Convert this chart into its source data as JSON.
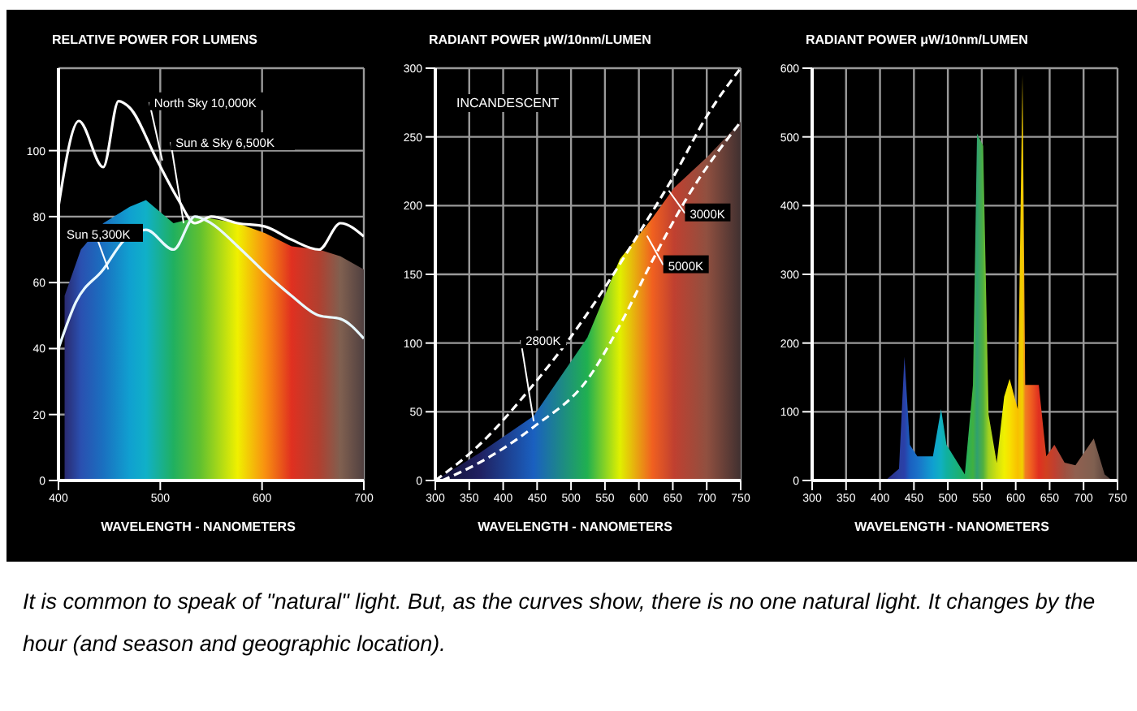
{
  "chart_data": [
    {
      "type": "line",
      "title": "RELATIVE POWER FOR LUMENS",
      "xlabel": "WAVELENGTH - NANOMETERS",
      "xlim": [
        400,
        700
      ],
      "xticks": [
        400,
        500,
        600,
        700
      ],
      "ylim": [
        0,
        125
      ],
      "yticks": [
        0,
        20,
        40,
        60,
        80,
        100
      ],
      "grid": true,
      "series": [
        {
          "type": "area",
          "x": [
            406,
            422,
            444,
            470,
            486,
            513,
            539,
            576,
            603,
            629,
            656,
            677,
            700
          ],
          "values": [
            56,
            70,
            78,
            83,
            85,
            78,
            80,
            78,
            75,
            71,
            70,
            68,
            64
          ],
          "colors": [
            "#2a2a70",
            "#2a50b0",
            "#1a70c0",
            "#10a0d0",
            "#10b0c8",
            "#20b060",
            "#60c030",
            "#f0f000",
            "#f89010",
            "#e03020",
            "#b04030",
            "#806050",
            "#504040"
          ]
        },
        {
          "type": "line",
          "color": "#ffffff",
          "line_style": "solid",
          "x": [
            400,
            420,
            444,
            459,
            470,
            497,
            518,
            534,
            550,
            576,
            603,
            629,
            656,
            677,
            700
          ],
          "values": [
            83,
            109,
            95,
            115,
            113,
            97,
            85,
            78,
            80,
            78,
            77,
            73,
            70,
            78,
            74
          ]
        },
        {
          "type": "line",
          "color": "#e8f8ff",
          "line_style": "solid",
          "x": [
            400,
            417,
            444,
            465,
            486,
            513,
            534,
            550,
            576,
            603,
            629,
            656,
            677,
            700
          ],
          "values": [
            40,
            54,
            64,
            73,
            76,
            70,
            80,
            78,
            71,
            63,
            56,
            50,
            49,
            43
          ]
        }
      ],
      "annotations": [
        {
          "text": "Sun 5,300K",
          "x": 449,
          "y": 64
        },
        {
          "text": "North Sky 10,000K",
          "x": 502,
          "y": 97
        },
        {
          "text": "Sun & Sky 6,500K",
          "x": 523,
          "y": 78
        }
      ]
    },
    {
      "type": "line",
      "title": "RADIANT POWER μW/10nm/LUMEN",
      "xlabel": "WAVELENGTH - NANOMETERS",
      "xlim": [
        300,
        750
      ],
      "xticks": [
        300,
        350,
        400,
        450,
        500,
        550,
        600,
        650,
        700,
        750
      ],
      "ylim": [
        0,
        300
      ],
      "yticks": [
        0,
        50,
        100,
        150,
        200,
        250,
        300
      ],
      "grid": true,
      "series": [
        {
          "type": "area",
          "x": [
            300,
            365,
            445,
            524,
            572,
            620,
            652,
            700,
            750
          ],
          "values": [
            0,
            20,
            47,
            104,
            161,
            191,
            213,
            235,
            261
          ],
          "colors": [
            "#101030",
            "#202060",
            "#1a60c0",
            "#20b050",
            "#e0f000",
            "#f06020",
            "#c04030",
            "#905040",
            "#403030"
          ]
        },
        {
          "type": "line",
          "color": "#ffffff",
          "line_style": "dashed",
          "x": [
            300,
            365,
            445,
            493,
            548,
            604,
            652,
            700,
            750
          ],
          "values": [
            0,
            26,
            70,
            100,
            139,
            183,
            222,
            265,
            300
          ]
        },
        {
          "type": "line",
          "color": "#ffffff",
          "line_style": "dashed",
          "x": [
            310,
            365,
            445,
            525,
            572,
            620,
            670,
            750
          ],
          "values": [
            0,
            13,
            39,
            74,
            113,
            160,
            205,
            261
          ]
        }
      ],
      "annotations": [
        "INCANDESCENT",
        {
          "text": "3000K",
          "x": 644,
          "y": 211
        },
        {
          "text": "5000K",
          "x": 612,
          "y": 178
        },
        {
          "text": "2800K",
          "x": 445,
          "y": 43
        }
      ]
    },
    {
      "type": "area",
      "title": "RADIANT POWER μW/10nm/LUMEN",
      "xlabel": "WAVELENGTH - NANOMETERS",
      "xlim": [
        300,
        750
      ],
      "xticks": [
        300,
        350,
        400,
        450,
        500,
        550,
        600,
        650,
        700,
        750
      ],
      "ylim": [
        0,
        600
      ],
      "yticks": [
        0,
        100,
        200,
        300,
        400,
        500,
        600
      ],
      "grid": true,
      "series": [
        {
          "type": "area",
          "x": [
            408,
            428,
            436,
            444,
            455,
            478,
            490,
            498,
            525,
            537,
            543,
            552,
            560,
            572,
            583,
            591,
            603,
            610,
            614,
            622,
            634,
            645,
            657,
            672,
            688,
            715,
            731,
            742
          ],
          "values": [
            0,
            17,
            180,
            52,
            35,
            35,
            104,
            52,
            9,
            139,
            505,
            487,
            96,
            26,
            122,
            148,
            104,
            590,
            139,
            139,
            139,
            35,
            52,
            26,
            22,
            61,
            9,
            0
          ],
          "colors": [
            "#2a2a80",
            "#2a3fa0",
            "#2a40a8",
            "#1a60c0",
            "#1a70c8",
            "#10a0d0",
            "#10b0c0",
            "#10b0a0",
            "#20b060",
            "#40b040",
            "#30a070",
            "#50b040",
            "#a0d020",
            "#d0e010",
            "#f0f000",
            "#f8e000",
            "#f8c000",
            "#f0d000",
            "#f08020",
            "#f06020",
            "#e03020",
            "#d04020",
            "#c04030",
            "#a05040",
            "#906050",
            "#806050",
            "#604840",
            "#504040"
          ]
        }
      ]
    },
    {
      "type": "other",
      "annotations": [
        "It is common to speak of \"natural\" light. But, as the curves show, there is no one natural light. It changes by the hour (and season and geographic location)."
      ]
    }
  ]
}
